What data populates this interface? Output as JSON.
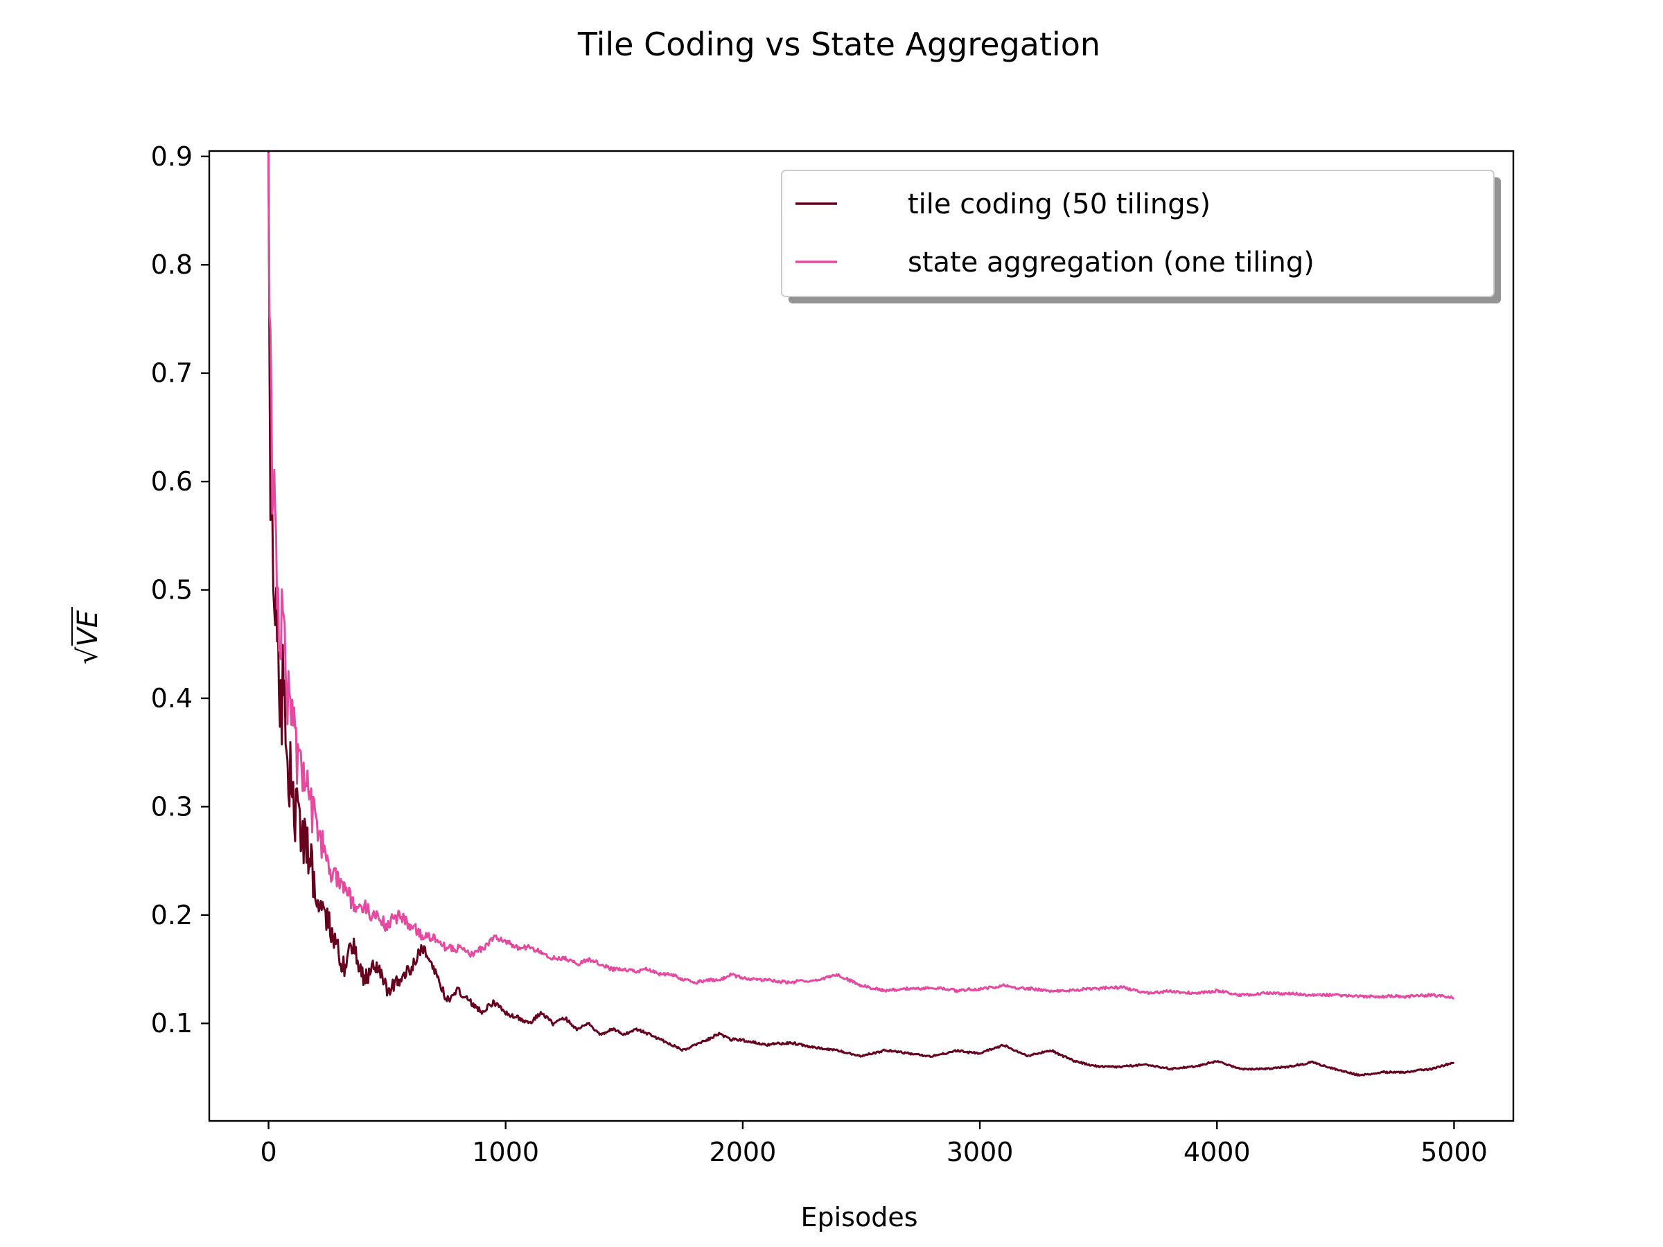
{
  "chart_data": {
    "type": "line",
    "title": "Tile Coding vs State Aggregation",
    "xlabel": "Episodes",
    "ylabel": "VE",
    "ylabel_prefix": "√",
    "xlim": [
      -250,
      5250
    ],
    "ylim": [
      0.01,
      0.905
    ],
    "xticks": [
      0,
      1000,
      2000,
      3000,
      4000,
      5000
    ],
    "xtick_labels": [
      "0",
      "1000",
      "2000",
      "3000",
      "4000",
      "5000"
    ],
    "yticks": [
      0.1,
      0.2,
      0.3,
      0.4,
      0.5,
      0.6,
      0.7,
      0.8,
      0.9
    ],
    "ytick_labels": [
      "0.1",
      "0.2",
      "0.3",
      "0.4",
      "0.5",
      "0.6",
      "0.7",
      "0.8",
      "0.9"
    ],
    "grid": false,
    "legend_position": "top-right",
    "series": [
      {
        "name": "tile coding (50 tilings)",
        "color": "#67001f",
        "x": [
          0,
          10,
          25,
          50,
          75,
          100,
          125,
          150,
          175,
          200,
          225,
          250,
          275,
          300,
          325,
          350,
          400,
          450,
          500,
          550,
          600,
          650,
          700,
          750,
          800,
          850,
          900,
          950,
          1000,
          1050,
          1100,
          1150,
          1200,
          1250,
          1300,
          1350,
          1400,
          1450,
          1500,
          1550,
          1600,
          1650,
          1700,
          1750,
          1800,
          1850,
          1900,
          1950,
          2000,
          2100,
          2200,
          2300,
          2400,
          2500,
          2600,
          2700,
          2800,
          2900,
          3000,
          3100,
          3200,
          3300,
          3400,
          3500,
          3600,
          3700,
          3800,
          3900,
          4000,
          4100,
          4200,
          4300,
          4400,
          4500,
          4600,
          4700,
          4800,
          4900,
          5000
        ],
        "y": [
          0.86,
          0.57,
          0.5,
          0.45,
          0.38,
          0.34,
          0.29,
          0.27,
          0.26,
          0.22,
          0.2,
          0.19,
          0.18,
          0.16,
          0.15,
          0.17,
          0.14,
          0.15,
          0.13,
          0.14,
          0.15,
          0.17,
          0.15,
          0.12,
          0.13,
          0.12,
          0.11,
          0.12,
          0.11,
          0.105,
          0.1,
          0.11,
          0.1,
          0.105,
          0.095,
          0.1,
          0.09,
          0.095,
          0.09,
          0.095,
          0.09,
          0.085,
          0.08,
          0.075,
          0.08,
          0.085,
          0.09,
          0.085,
          0.085,
          0.08,
          0.082,
          0.078,
          0.075,
          0.07,
          0.075,
          0.072,
          0.07,
          0.075,
          0.072,
          0.08,
          0.07,
          0.075,
          0.065,
          0.06,
          0.06,
          0.062,
          0.058,
          0.06,
          0.065,
          0.058,
          0.058,
          0.06,
          0.064,
          0.058,
          0.052,
          0.055,
          0.055,
          0.058,
          0.064
        ],
        "noise": 0.35
      },
      {
        "name": "state aggregation (one tiling)",
        "color": "#e54aa0",
        "x": [
          0,
          10,
          25,
          50,
          75,
          100,
          125,
          150,
          175,
          200,
          225,
          250,
          275,
          300,
          325,
          350,
          400,
          450,
          500,
          550,
          600,
          650,
          700,
          750,
          800,
          850,
          900,
          950,
          1000,
          1050,
          1100,
          1150,
          1200,
          1250,
          1300,
          1350,
          1400,
          1450,
          1500,
          1550,
          1600,
          1650,
          1700,
          1750,
          1800,
          1850,
          1900,
          1950,
          2000,
          2100,
          2200,
          2300,
          2400,
          2500,
          2600,
          2700,
          2800,
          2900,
          3000,
          3100,
          3200,
          3300,
          3400,
          3500,
          3600,
          3700,
          3800,
          3900,
          4000,
          4100,
          4200,
          4300,
          4400,
          4500,
          4600,
          4700,
          4800,
          4900,
          5000
        ],
        "y": [
          0.83,
          0.66,
          0.56,
          0.48,
          0.41,
          0.37,
          0.34,
          0.32,
          0.3,
          0.28,
          0.26,
          0.24,
          0.23,
          0.23,
          0.22,
          0.21,
          0.21,
          0.2,
          0.19,
          0.2,
          0.19,
          0.18,
          0.18,
          0.17,
          0.17,
          0.165,
          0.17,
          0.18,
          0.175,
          0.17,
          0.17,
          0.165,
          0.16,
          0.16,
          0.155,
          0.16,
          0.155,
          0.15,
          0.15,
          0.148,
          0.15,
          0.145,
          0.145,
          0.14,
          0.138,
          0.14,
          0.14,
          0.145,
          0.142,
          0.14,
          0.138,
          0.14,
          0.145,
          0.135,
          0.13,
          0.132,
          0.133,
          0.13,
          0.132,
          0.135,
          0.132,
          0.13,
          0.13,
          0.132,
          0.133,
          0.128,
          0.13,
          0.128,
          0.13,
          0.126,
          0.128,
          0.127,
          0.126,
          0.126,
          0.125,
          0.125,
          0.125,
          0.126,
          0.124
        ],
        "noise": 0.25
      }
    ]
  }
}
